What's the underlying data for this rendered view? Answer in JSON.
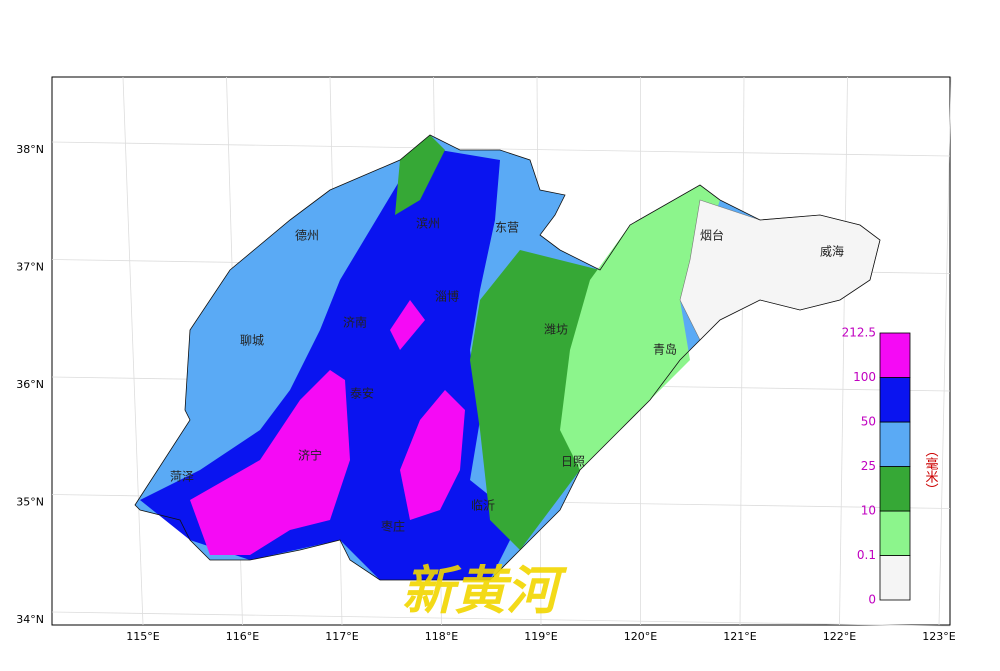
{
  "map": {
    "lat_labels": [
      "38°N",
      "37°N",
      "36°N",
      "35°N",
      "34°N"
    ],
    "lon_labels": [
      "115°E",
      "116°E",
      "117°E",
      "118°E",
      "119°E",
      "120°E",
      "121°E",
      "122°E",
      "123°E"
    ],
    "cities": [
      "德州",
      "滨州",
      "东营",
      "烟台",
      "威海",
      "淄博",
      "潍坊",
      "聊城",
      "济南",
      "泰安",
      "青岛",
      "济宁",
      "菏泽",
      "日照",
      "枣庄",
      "临沂"
    ],
    "watermark": "新黄河"
  },
  "legend": {
    "bounds": [
      0,
      0.1,
      10,
      25,
      50,
      100,
      212.5
    ],
    "colors": [
      "#f5f5f5",
      "#8cf58c",
      "#36a836",
      "#5aaaf5",
      "#0a14f0",
      "#f50af5"
    ],
    "unit": "（毫米）"
  }
}
